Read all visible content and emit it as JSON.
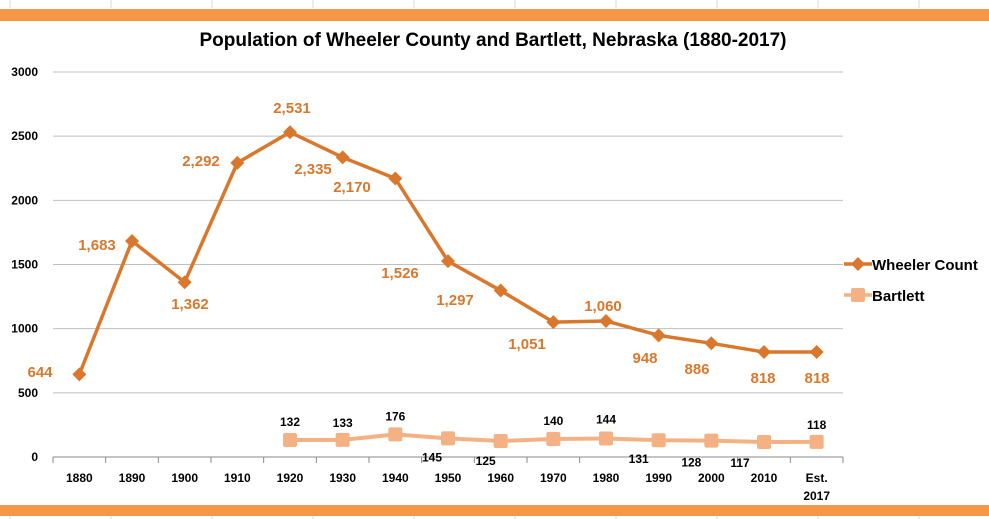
{
  "chart_data": {
    "type": "line",
    "title": "Population of Wheeler County and Bartlett, Nebraska (1880-2017)",
    "categories": [
      "1880",
      "1890",
      "1900",
      "1910",
      "1920",
      "1930",
      "1940",
      "1950",
      "1960",
      "1970",
      "1980",
      "1990",
      "2000",
      "2010",
      "Est. 2017"
    ],
    "ylim": [
      0,
      3000
    ],
    "yticks": [
      "0",
      "500",
      "1000",
      "1500",
      "2000",
      "2500",
      "3000"
    ],
    "grid": true,
    "legend": "right",
    "series": [
      {
        "name": "Wheeler Count",
        "color": "#d9782d",
        "marker": "diamond",
        "values": [
          644,
          1683,
          1362,
          2292,
          2531,
          2335,
          2170,
          1526,
          1297,
          1051,
          1060,
          948,
          886,
          818,
          818
        ],
        "labels": [
          "644",
          "1,683",
          "1,362",
          "2,292",
          "2,531",
          "2,335",
          "2,170",
          "1,526",
          "1,297",
          "1,051",
          "1,060",
          "948",
          "886",
          "818",
          "818"
        ]
      },
      {
        "name": "Bartlett",
        "color": "#f4b183",
        "marker": "square",
        "values": [
          null,
          null,
          null,
          null,
          132,
          133,
          176,
          145,
          125,
          140,
          144,
          131,
          128,
          117,
          118
        ],
        "labels": [
          null,
          null,
          null,
          null,
          "132",
          "133",
          "176",
          "145",
          "125",
          "140",
          "144",
          "131",
          "128",
          "117",
          "118"
        ]
      }
    ]
  },
  "frame_color": "#f79646"
}
